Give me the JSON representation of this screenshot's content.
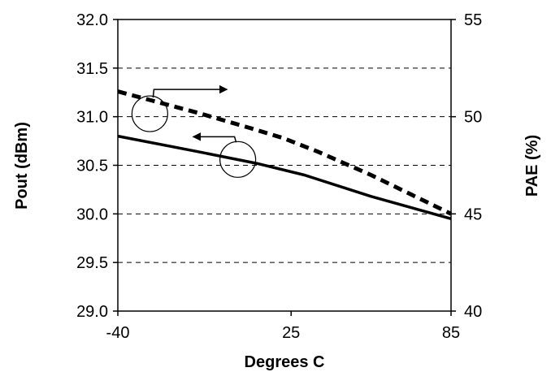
{
  "chart_data": {
    "type": "line",
    "title": "",
    "xlabel": "Degrees C",
    "ylabel_left": "Pout (dBm)",
    "ylabel_right": "PAE (%)",
    "x_ticks": [
      "-40",
      "25",
      "85"
    ],
    "x_range": [
      -40,
      85
    ],
    "y_left_ticks": [
      "29.0",
      "29.5",
      "30.0",
      "30.5",
      "31.0",
      "31.5",
      "32.0"
    ],
    "y_left_range": [
      29.0,
      32.0
    ],
    "y_right_ticks": [
      "40",
      "45",
      "50",
      "55"
    ],
    "y_right_range": [
      40,
      55
    ],
    "grid": "horizontal-dashed",
    "legend": "none",
    "series": [
      {
        "axis": "left",
        "style": "solid",
        "color": "#000000",
        "points": [
          [
            -40,
            30.8
          ],
          [
            -10,
            30.64
          ],
          [
            12,
            30.52
          ],
          [
            30,
            30.4
          ],
          [
            55,
            30.18
          ],
          [
            85,
            29.95
          ]
        ]
      },
      {
        "axis": "right",
        "style": "dashed",
        "color": "#000000",
        "points": [
          [
            -40,
            51.3
          ],
          [
            -10,
            50.2
          ],
          [
            10,
            49.4
          ],
          [
            22,
            48.9
          ],
          [
            35,
            48.2
          ],
          [
            55,
            47.0
          ],
          [
            85,
            45.0
          ]
        ]
      }
    ],
    "annotations": [
      {
        "target_axis": "right",
        "marker": "circle-with-arrow",
        "arrow_direction": "right",
        "at": [
          -28,
          50.15
        ]
      },
      {
        "target_axis": "left",
        "marker": "circle-with-arrow",
        "arrow_direction": "left",
        "at": [
          5,
          30.56
        ]
      }
    ]
  }
}
